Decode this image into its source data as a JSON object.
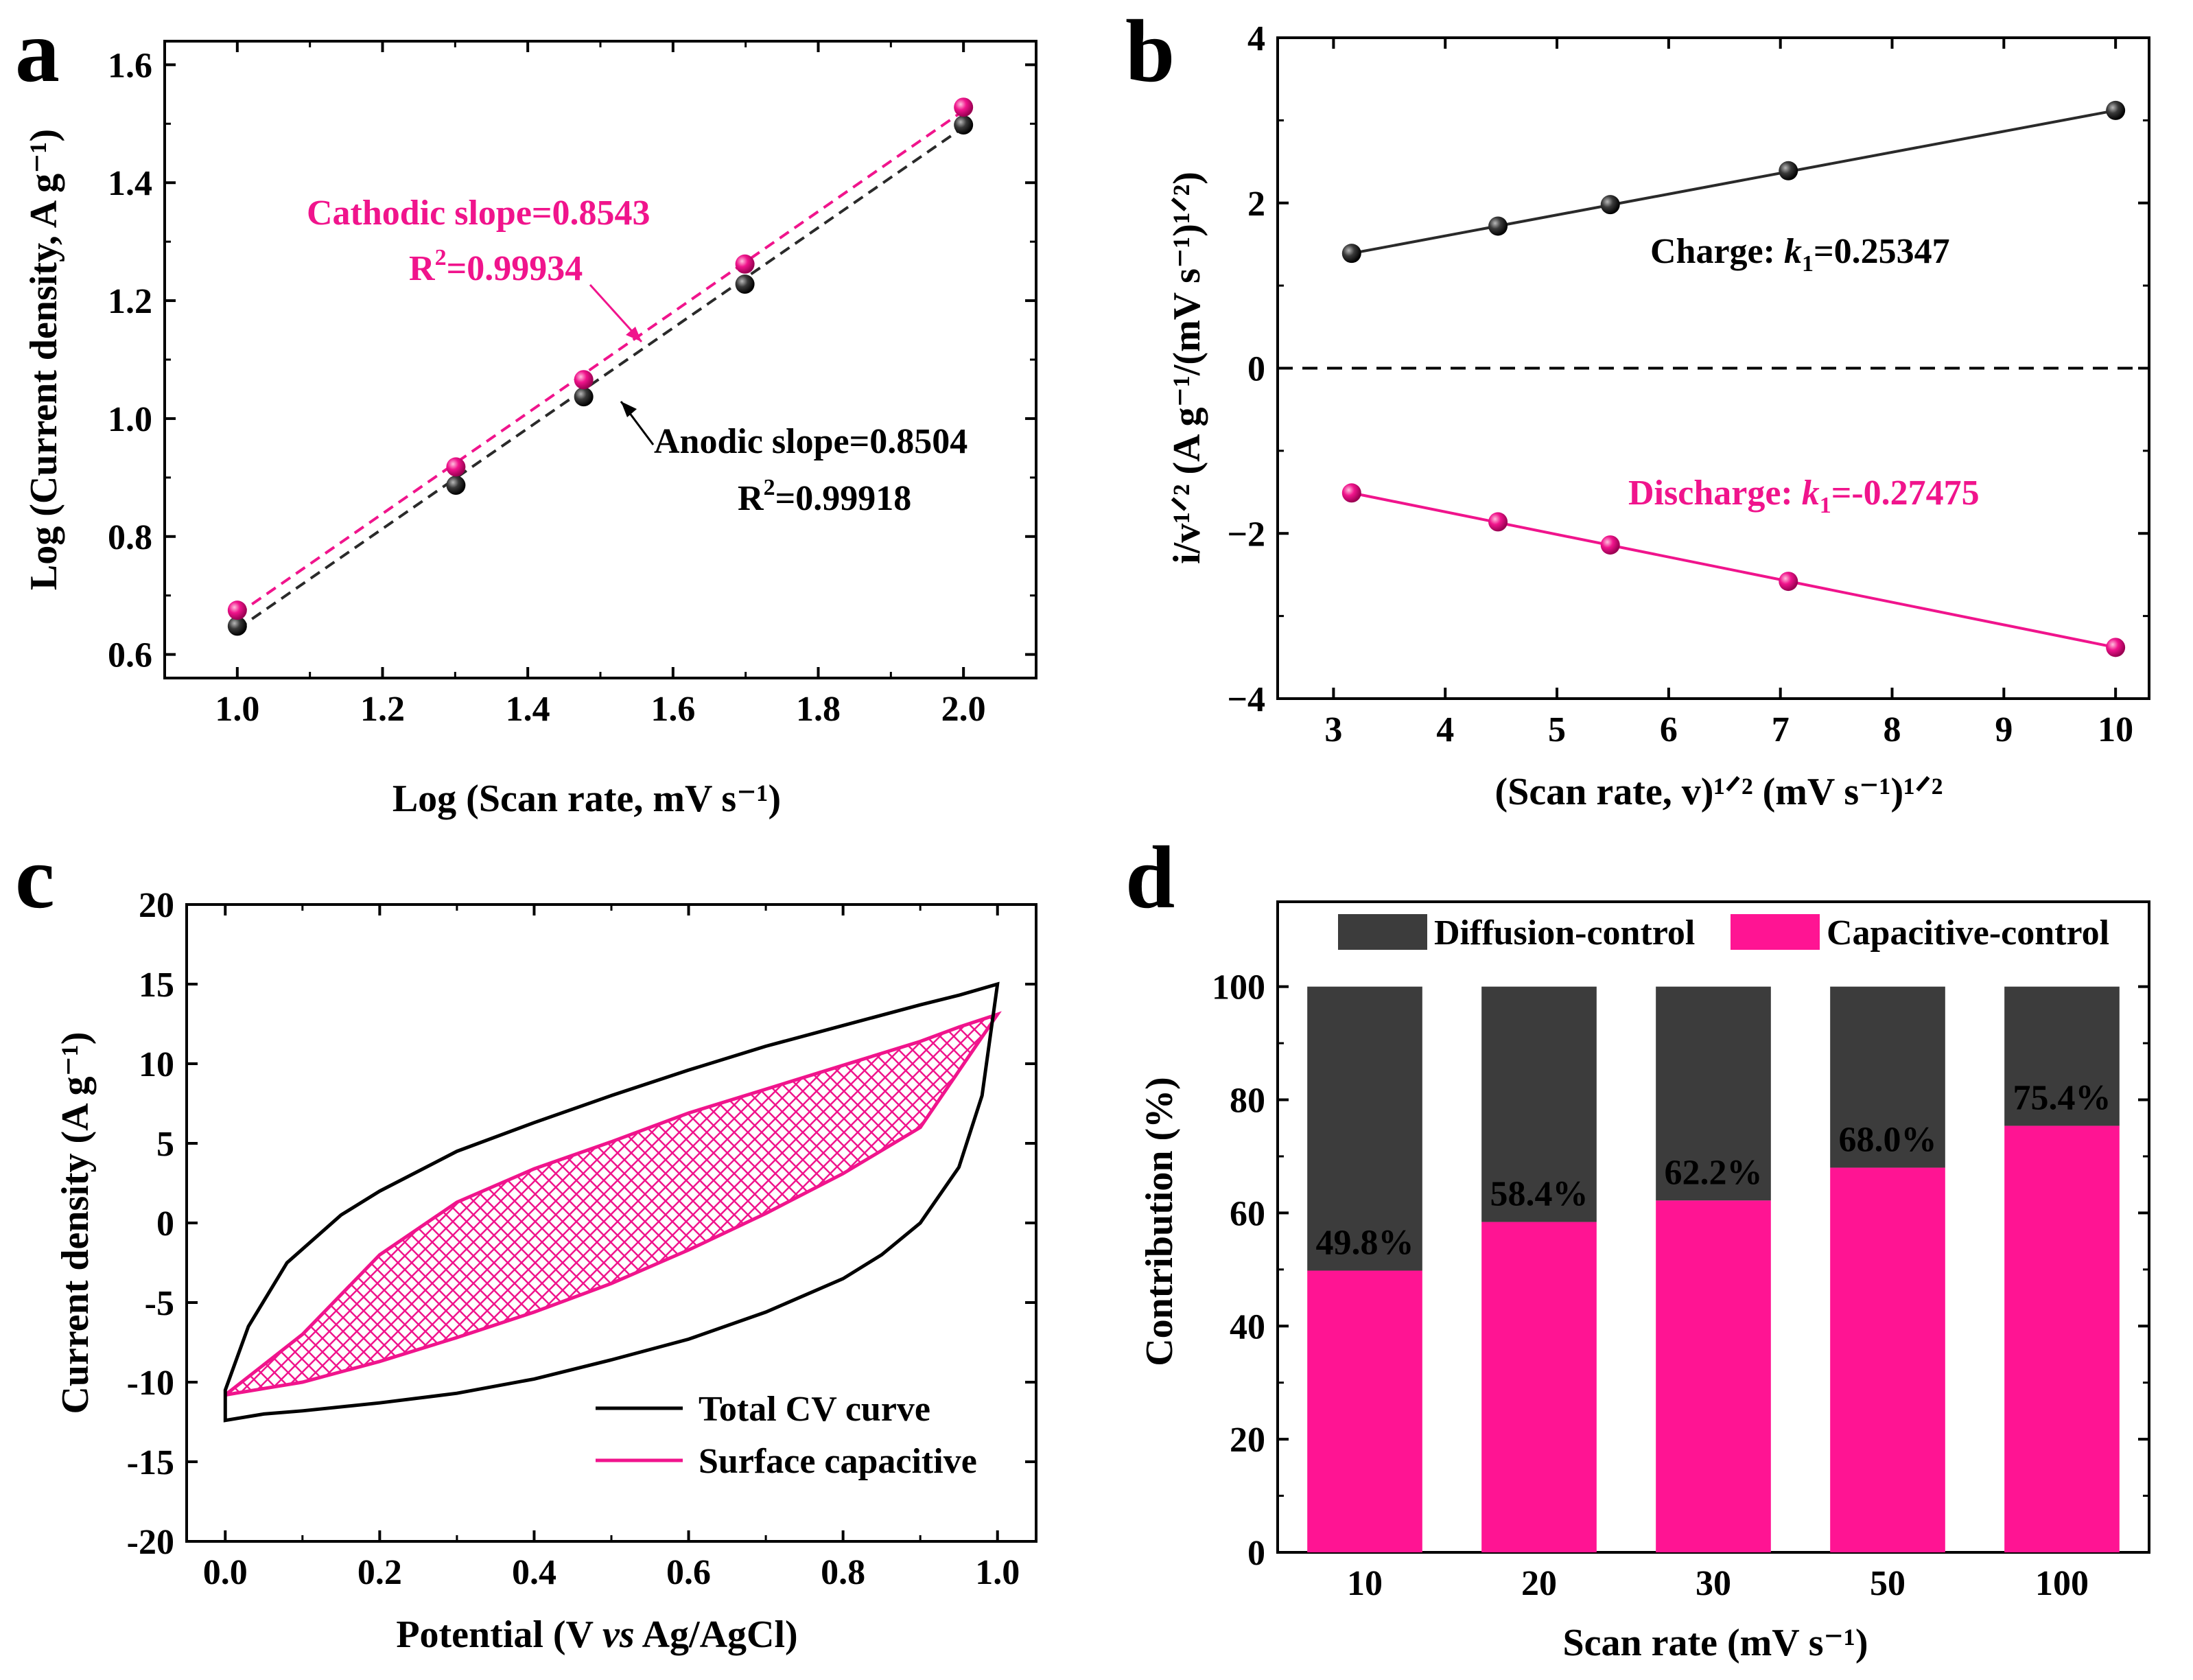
{
  "colors": {
    "black": "#000000",
    "pink": "#f0148c",
    "dark_marker": "#2a2a2a",
    "dark_bar": "#3c3c3c"
  },
  "chart_data": [
    {
      "panel": "a",
      "type": "scatter",
      "xlabel": "Log (Scan rate, mV s⁻¹)",
      "ylabel": "Log (Current density, A g⁻¹)",
      "xlim": [
        0.9,
        2.1
      ],
      "ylim": [
        0.56,
        1.64
      ],
      "x_ticks": [
        1.0,
        1.2,
        1.4,
        1.6,
        1.8,
        2.0
      ],
      "x_tick_labels": [
        "1.0",
        "1.2",
        "1.4",
        "1.6",
        "1.8",
        "2.0"
      ],
      "y_ticks": [
        0.6,
        0.8,
        1.0,
        1.2,
        1.4,
        1.6
      ],
      "y_tick_labels": [
        "0.6",
        "0.8",
        "1.0",
        "1.2",
        "1.4",
        "1.6"
      ],
      "series": [
        {
          "name": "Cathodic",
          "color": "#f0148c",
          "x": [
            1.0,
            1.301,
            1.477,
            1.699,
            2.0
          ],
          "y": [
            0.675,
            0.918,
            1.066,
            1.262,
            1.528
          ],
          "fit": [
            [
              1.0,
              0.668
            ],
            [
              2.0,
              1.522
            ]
          ]
        },
        {
          "name": "Anodic",
          "color": "#2a2a2a",
          "x": [
            1.0,
            1.301,
            1.477,
            1.699,
            2.0
          ],
          "y": [
            0.648,
            0.887,
            1.037,
            1.228,
            1.498
          ],
          "fit": [
            [
              1.0,
              0.643
            ],
            [
              2.0,
              1.494
            ]
          ]
        }
      ],
      "annotations": {
        "cathodic_slope": "Cathodic slope=0.8543",
        "cathodic_r2_prefix": "R",
        "cathodic_r2_sup": "2",
        "cathodic_r2_value": "=0.99934",
        "anodic_slope": "Anodic slope=0.8504",
        "anodic_r2_prefix": "R",
        "anodic_r2_sup": "2",
        "anodic_r2_value": "=0.99918"
      }
    },
    {
      "panel": "b",
      "type": "scatter",
      "xlabel": "(Scan rate, v)¹ᐟ² (mV s⁻¹)¹ᐟ²",
      "ylabel": "i/v¹ᐟ² (A g⁻¹/(mV s⁻¹)¹ᐟ²)",
      "xlim": [
        2.5,
        10.3
      ],
      "ylim": [
        -4,
        4
      ],
      "x_ticks": [
        3,
        4,
        5,
        6,
        7,
        8,
        9,
        10
      ],
      "x_tick_labels": [
        "3",
        "4",
        "5",
        "6",
        "7",
        "8",
        "9",
        "10"
      ],
      "y_ticks": [
        -4,
        -2,
        0,
        2,
        4
      ],
      "y_tick_labels": [
        "−4",
        "−2",
        "0",
        "2",
        "4"
      ],
      "series": [
        {
          "name": "Charge",
          "color": "#2a2a2a",
          "x": [
            3.162,
            4.472,
            5.477,
            7.071,
            10.0
          ],
          "y": [
            1.39,
            1.72,
            1.98,
            2.39,
            3.12
          ],
          "fit": [
            [
              3.162,
              1.39
            ],
            [
              10.0,
              3.12
            ]
          ]
        },
        {
          "name": "Discharge",
          "color": "#f0148c",
          "x": [
            3.162,
            4.472,
            5.477,
            7.071,
            10.0
          ],
          "y": [
            -1.51,
            -1.86,
            -2.14,
            -2.58,
            -3.38
          ],
          "fit": [
            [
              3.162,
              -1.51
            ],
            [
              10.0,
              -3.38
            ]
          ]
        }
      ],
      "reference_line_y": 0,
      "annotations": {
        "charge_label": "Charge: ",
        "charge_k": "k",
        "charge_sub": "1",
        "charge_value": "=0.25347",
        "discharge_label": "Discharge: ",
        "discharge_k": "k",
        "discharge_sub": "1",
        "discharge_value": "=-0.27475"
      }
    },
    {
      "panel": "c",
      "type": "line",
      "xlabel": "Potential (V vs Ag/AgCl)",
      "ylabel": "Current density (A g⁻¹)",
      "xlim": [
        -0.05,
        1.05
      ],
      "ylim": [
        -20,
        20
      ],
      "x_ticks": [
        0.0,
        0.2,
        0.4,
        0.6,
        0.8,
        1.0
      ],
      "x_tick_labels": [
        "0.0",
        "0.2",
        "0.4",
        "0.6",
        "0.8",
        "1.0"
      ],
      "y_ticks": [
        -20,
        -15,
        -10,
        -5,
        0,
        5,
        10,
        15,
        20
      ],
      "y_tick_labels": [
        "-20",
        "-15",
        "-10",
        "-5",
        "0",
        "5",
        "10",
        "15",
        "20"
      ],
      "series": [
        {
          "name": "Total CV curve",
          "color": "#000000",
          "x": [
            0.0,
            0.03,
            0.08,
            0.15,
            0.2,
            0.3,
            0.4,
            0.5,
            0.6,
            0.7,
            0.8,
            0.9,
            0.95,
            1.0,
            0.98,
            0.95,
            0.9,
            0.85,
            0.8,
            0.7,
            0.6,
            0.5,
            0.4,
            0.3,
            0.2,
            0.1,
            0.05,
            0.0,
            0.0
          ],
          "y": [
            -10.5,
            -6.5,
            -2.5,
            0.5,
            2.0,
            4.5,
            6.3,
            8.0,
            9.6,
            11.1,
            12.4,
            13.7,
            14.3,
            15.0,
            8.0,
            3.5,
            0.0,
            -2.0,
            -3.5,
            -5.6,
            -7.3,
            -8.6,
            -9.8,
            -10.7,
            -11.3,
            -11.8,
            -12.0,
            -12.4,
            -10.5
          ]
        },
        {
          "name": "Surface capacitive",
          "color": "#f0148c",
          "x": [
            0.0,
            0.1,
            0.2,
            0.3,
            0.4,
            0.5,
            0.6,
            0.7,
            0.8,
            0.9,
            0.95,
            1.0,
            0.9,
            0.8,
            0.7,
            0.6,
            0.5,
            0.4,
            0.3,
            0.2,
            0.1,
            0.0
          ],
          "y": [
            -10.8,
            -7.0,
            -2.0,
            1.3,
            3.4,
            5.1,
            6.9,
            8.4,
            9.9,
            11.4,
            12.3,
            13.1,
            6.0,
            3.1,
            0.6,
            -1.7,
            -3.8,
            -5.6,
            -7.2,
            -8.7,
            -10.0,
            -10.8
          ]
        }
      ],
      "legend": [
        "Total CV curve",
        "Surface capacitive"
      ],
      "legend_position": "bottom-right"
    },
    {
      "panel": "d",
      "type": "bar",
      "stacked": true,
      "xlabel": "Scan rate (mV s⁻¹)",
      "ylabel": "Contribution (%)",
      "ylim": [
        0,
        115
      ],
      "categories": [
        "10",
        "20",
        "30",
        "50",
        "100"
      ],
      "y_ticks": [
        0,
        20,
        40,
        60,
        80,
        100
      ],
      "y_tick_labels": [
        "0",
        "20",
        "40",
        "60",
        "80",
        "100"
      ],
      "series": [
        {
          "name": "Capacitive-control",
          "color": "#ff1493",
          "values": [
            49.8,
            58.4,
            62.2,
            68.0,
            75.4
          ]
        },
        {
          "name": "Diffusion-control",
          "color": "#3c3c3c",
          "values": [
            50.2,
            41.6,
            37.8,
            32.0,
            24.6
          ]
        }
      ],
      "data_labels": [
        "49.8%",
        "58.4%",
        "62.2%",
        "68.0%",
        "75.4%"
      ],
      "legend": [
        "Diffusion-control",
        "Capacitive-control"
      ],
      "legend_position": "top"
    }
  ],
  "panel_letters": {
    "a": "a",
    "b": "b",
    "c": "c",
    "d": "d"
  }
}
